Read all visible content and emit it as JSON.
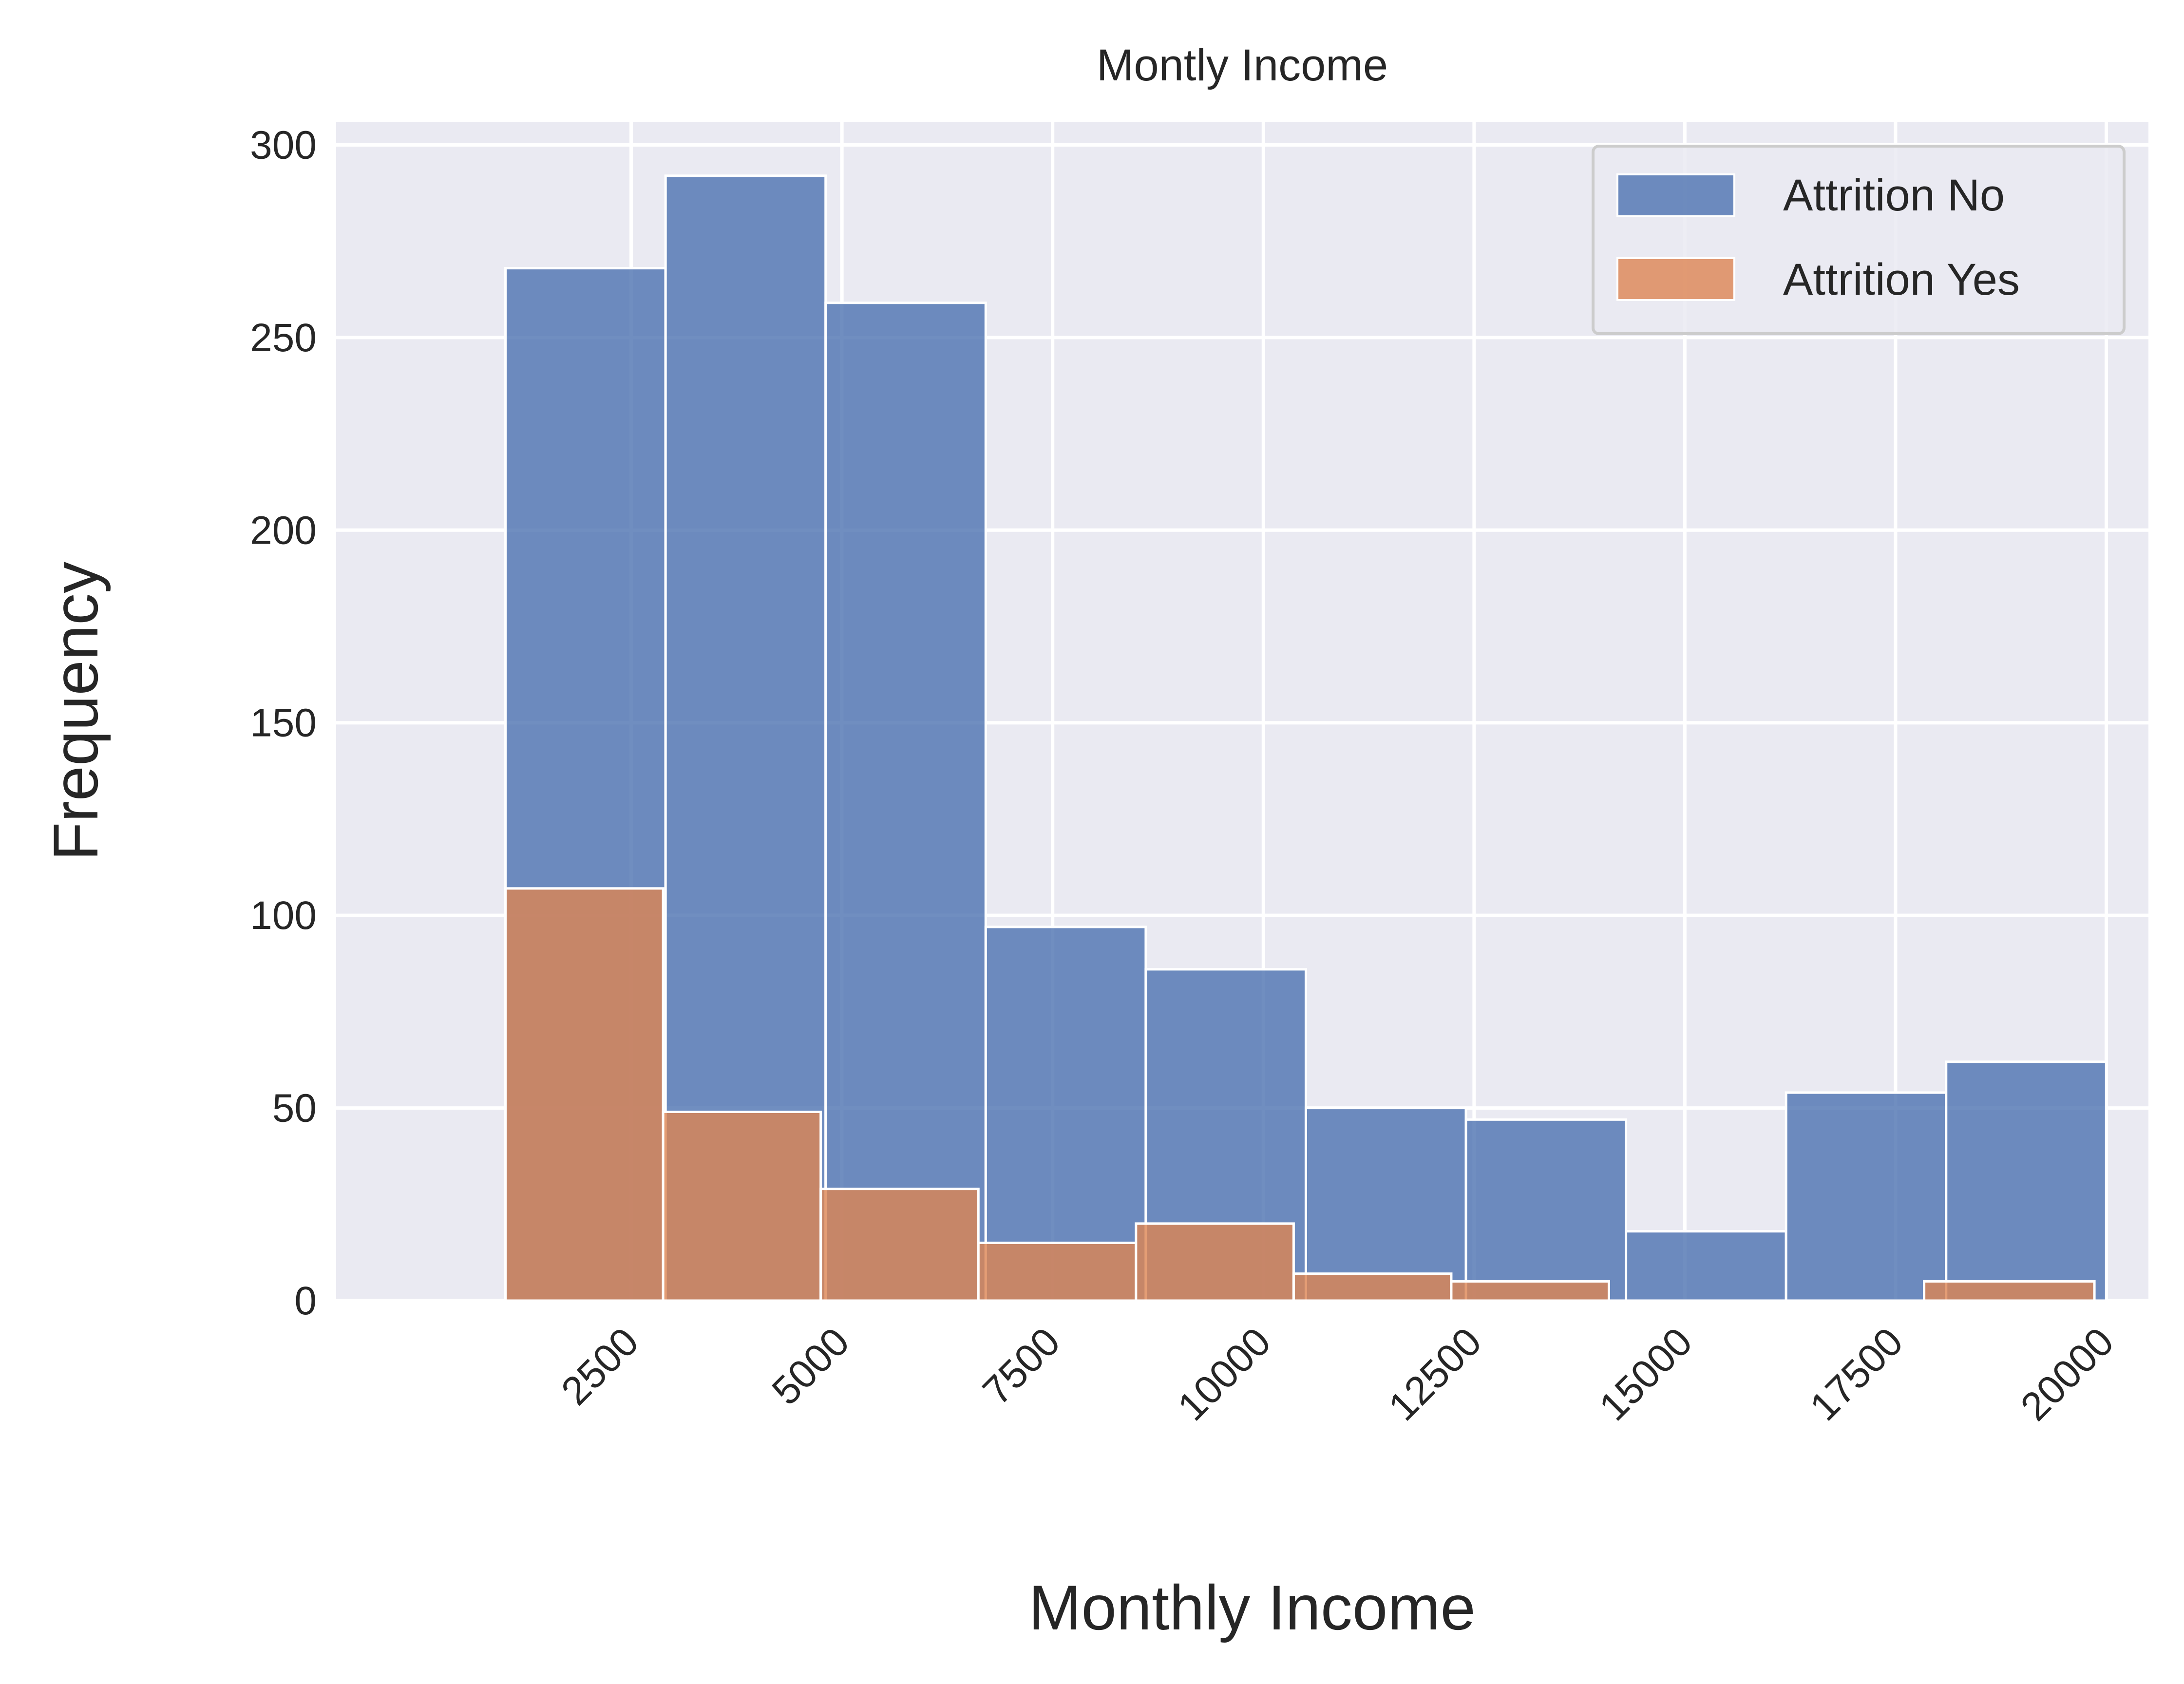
{
  "chart_data": {
    "type": "bar",
    "title": "Montly Income",
    "xlabel": "Monthly Income",
    "ylabel": "Frequency",
    "xlim": [
      -1000,
      20500
    ],
    "ylim": [
      0,
      306
    ],
    "x_ticks": [
      2500,
      5000,
      7500,
      10000,
      12500,
      15000,
      17500,
      20000
    ],
    "y_ticks": [
      0,
      50,
      100,
      150,
      200,
      250,
      300
    ],
    "grid": true,
    "legend_position": "top-right",
    "series": [
      {
        "name": "Attrition No",
        "color": "#4c72b0",
        "bins": [
          {
            "x0": 1009,
            "x1": 2908,
            "value": 268
          },
          {
            "x0": 2908,
            "x1": 4807,
            "value": 292
          },
          {
            "x0": 4807,
            "x1": 6706,
            "value": 259
          },
          {
            "x0": 6706,
            "x1": 8605,
            "value": 97
          },
          {
            "x0": 8605,
            "x1": 10504,
            "value": 86
          },
          {
            "x0": 10504,
            "x1": 12403,
            "value": 50
          },
          {
            "x0": 12403,
            "x1": 14302,
            "value": 47
          },
          {
            "x0": 14302,
            "x1": 16201,
            "value": 18
          },
          {
            "x0": 16201,
            "x1": 18100,
            "value": 54
          },
          {
            "x0": 18100,
            "x1": 19999,
            "value": 62
          }
        ]
      },
      {
        "name": "Attrition Yes",
        "color": "#dd8452",
        "bins": [
          {
            "x0": 1009,
            "x1": 2879,
            "value": 107
          },
          {
            "x0": 2879,
            "x1": 4749,
            "value": 49
          },
          {
            "x0": 4749,
            "x1": 6619,
            "value": 29
          },
          {
            "x0": 6619,
            "x1": 8489,
            "value": 15
          },
          {
            "x0": 8489,
            "x1": 10359,
            "value": 20
          },
          {
            "x0": 10359,
            "x1": 12229,
            "value": 7
          },
          {
            "x0": 12229,
            "x1": 14099,
            "value": 5
          },
          {
            "x0": 14099,
            "x1": 15969,
            "value": 0
          },
          {
            "x0": 15969,
            "x1": 17839,
            "value": 0
          },
          {
            "x0": 17839,
            "x1": 19859,
            "value": 5
          }
        ]
      }
    ]
  }
}
